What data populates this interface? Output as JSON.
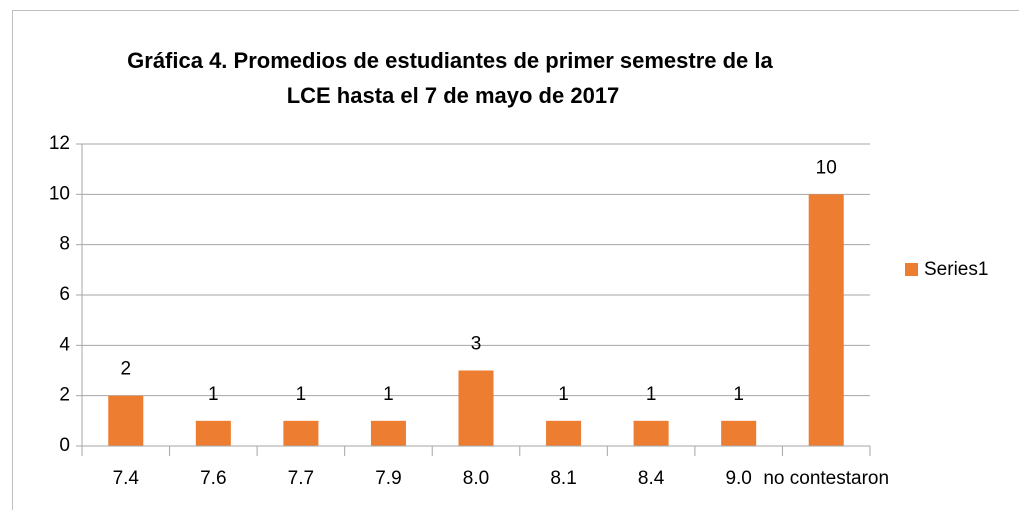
{
  "chart_data": {
    "type": "bar",
    "title": "Gráfica 4. Promedios de estudiantes de primer semestre de la LCE hasta el 7 de mayo de 2017",
    "categories": [
      "7.4",
      "7.6",
      "7.7",
      "7.9",
      "8.0",
      "8.1",
      "8.4",
      "9.0",
      "no contestaron"
    ],
    "series": [
      {
        "name": "Series1",
        "color": "#ed7d31",
        "values": [
          2,
          1,
          1,
          1,
          3,
          1,
          1,
          1,
          10
        ]
      }
    ],
    "ylim": [
      0,
      12
    ],
    "yticks": [
      0,
      2,
      4,
      6,
      8,
      10,
      12
    ],
    "grid": true,
    "legend": "right",
    "data_labels": true
  }
}
